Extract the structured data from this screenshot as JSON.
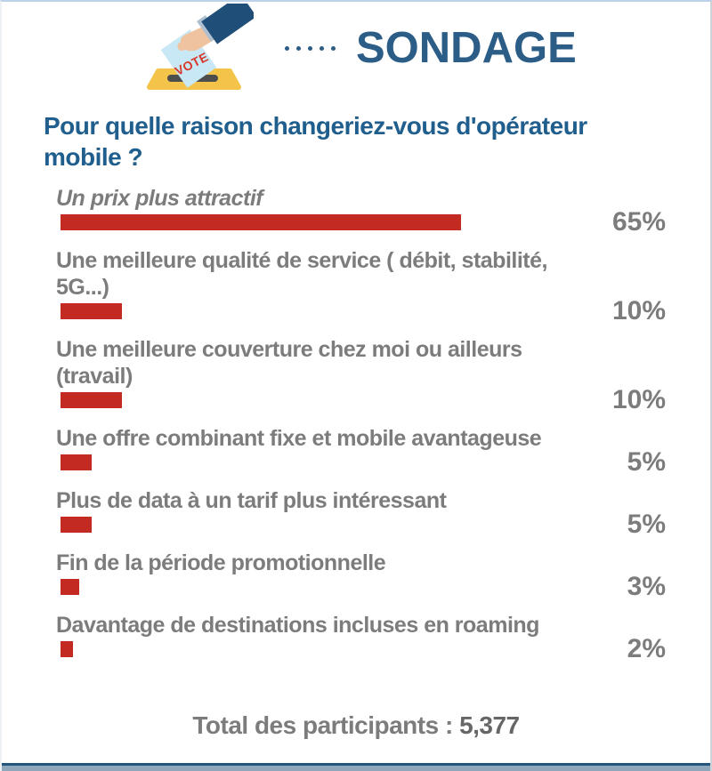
{
  "header": {
    "title": "SONDAGE",
    "vote_label": "VOTE"
  },
  "question": "Pour quelle raison changeriez-vous d'opérateur\nmobile ?",
  "chart_data": {
    "type": "bar",
    "orientation": "horizontal",
    "unit": "%",
    "value_range": [
      0,
      65
    ],
    "bar_color": "#c32a21",
    "categories": [
      "Un prix plus attractif",
      "Une meilleure qualité de service ( débit, stabilité, 5G...)",
      "Une meilleure couverture chez moi ou ailleurs (travail)",
      "Une offre combinant fixe et mobile avantageuse",
      "Plus de data à un tarif plus intéressant",
      "Fin de la période promotionnelle",
      "Davantage de destinations incluses en roaming"
    ],
    "values": [
      65,
      10,
      10,
      5,
      5,
      3,
      2
    ],
    "items": [
      {
        "label": "Un prix plus attractif",
        "value": 65,
        "pct": "65%"
      },
      {
        "label": "Une meilleure qualité de service ( débit, stabilité,\n5G...)",
        "value": 10,
        "pct": "10%"
      },
      {
        "label": "Une meilleure couverture chez moi ou ailleurs\n(travail)",
        "value": 10,
        "pct": "10%"
      },
      {
        "label": "Une offre combinant fixe et mobile avantageuse",
        "value": 5,
        "pct": "5%"
      },
      {
        "label": "Plus de data à un tarif plus intéressant",
        "value": 5,
        "pct": "5%"
      },
      {
        "label": "Fin de la période promotionnelle",
        "value": 3,
        "pct": "3%"
      },
      {
        "label": "Davantage de destinations incluses en roaming",
        "value": 2,
        "pct": "2%"
      }
    ]
  },
  "footer": {
    "total_label": "Total des participants :",
    "total_value": "5,377"
  },
  "colors": {
    "title_blue": "#2b5d87",
    "question_blue": "#205f8d",
    "label_gray": "#7c7c7c",
    "bar_red": "#c32a21",
    "bottom_border": "#24557c"
  }
}
